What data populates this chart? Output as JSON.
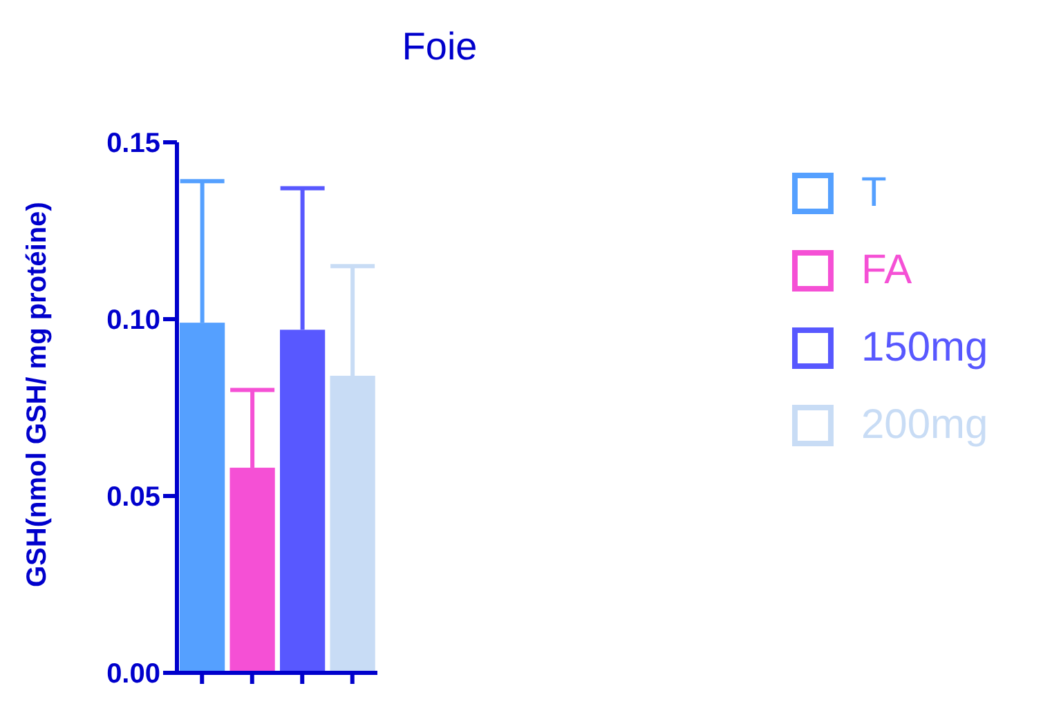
{
  "chart_data": {
    "type": "bar",
    "title": "Foie",
    "ylabel": "GSH(nmol GSH/ mg protéine)",
    "categories": [
      null,
      null,
      null,
      null
    ],
    "series": [
      {
        "name": "T",
        "color": "#55a0ff",
        "values": [
          0.099,
          null,
          null,
          null
        ],
        "errors": [
          [
            0.099,
            0.139
          ],
          null,
          null,
          null
        ]
      },
      {
        "name": "FA",
        "color": "#f550d5",
        "values": [
          null,
          0.058,
          null,
          null
        ],
        "errors": [
          null,
          [
            0.058,
            0.08
          ],
          null,
          null
        ]
      },
      {
        "name": "150mg",
        "color": "#5858ff",
        "values": [
          null,
          null,
          0.097,
          null
        ],
        "errors": [
          null,
          null,
          [
            0.097,
            0.137
          ],
          null
        ]
      },
      {
        "name": "200mg",
        "color": "#c8dcf5",
        "values": [
          null,
          null,
          null,
          0.084
        ],
        "errors": [
          null,
          null,
          null,
          [
            0.084,
            0.115
          ]
        ]
      }
    ],
    "ylim": [
      0,
      0.15
    ],
    "yticks": [
      {
        "value": 0,
        "label": "0.00"
      },
      {
        "value": 0.05,
        "label": "0.05"
      },
      {
        "value": 0.1,
        "label": "0.10"
      },
      {
        "value": 0.15,
        "label": "0.15"
      }
    ],
    "tick_labels": "y",
    "legend": "right"
  }
}
